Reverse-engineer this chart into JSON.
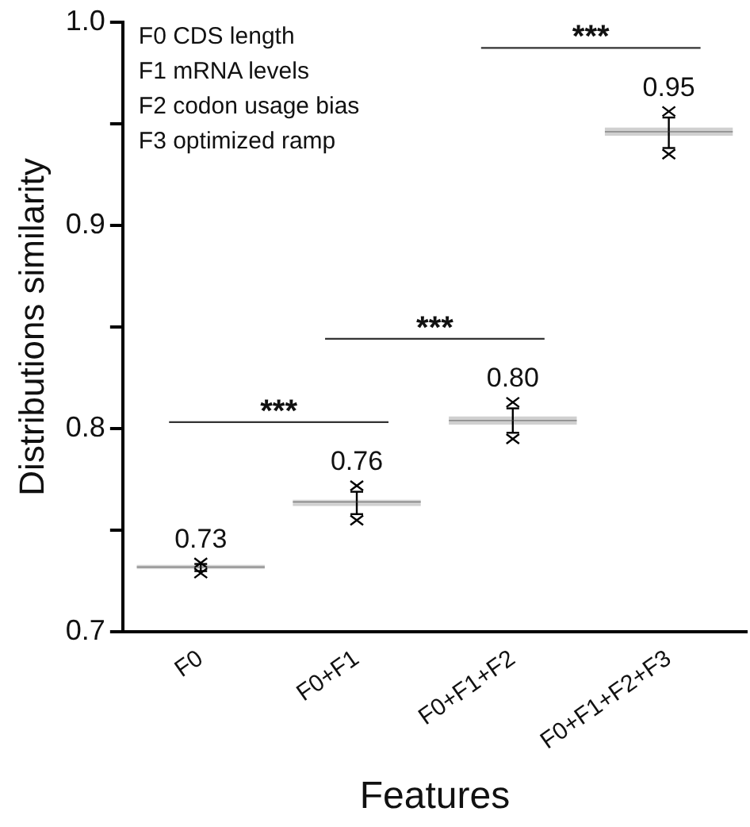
{
  "chart_data": {
    "type": "box",
    "xlabel": "Features",
    "ylabel": "Distributions similarity",
    "categories": [
      "F0",
      "F0+F1",
      "F0+F1+F2",
      "F0+F1+F2+F3"
    ],
    "boxes": [
      {
        "low": 0.73,
        "q1": 0.731,
        "median": 0.732,
        "q3": 0.733,
        "high": 0.7335,
        "outliers": [
          0.729,
          0.734
        ]
      },
      {
        "low": 0.758,
        "q1": 0.762,
        "median": 0.764,
        "q3": 0.765,
        "high": 0.769,
        "outliers": [
          0.755,
          0.772
        ]
      },
      {
        "low": 0.798,
        "q1": 0.802,
        "median": 0.804,
        "q3": 0.806,
        "high": 0.81,
        "outliers": [
          0.795,
          0.813
        ]
      },
      {
        "low": 0.938,
        "q1": 0.944,
        "median": 0.946,
        "q3": 0.948,
        "high": 0.953,
        "outliers": [
          0.935,
          0.956
        ]
      }
    ],
    "value_labels": [
      "0.73",
      "0.76",
      "0.80",
      "0.95"
    ],
    "color": "#d0d0d0",
    "ylim": [
      0.7,
      1.0
    ],
    "yticks": [
      0.7,
      {
        "value": 0.75,
        "label": null
      },
      0.8,
      {
        "value": 0.85,
        "label": null
      },
      0.9,
      {
        "value": 0.95,
        "label": null
      },
      {
        "value": 1.0,
        "label": "1.0"
      }
    ],
    "annotations": [
      "F0 CDS length",
      "F1 mRNA levels",
      "F2 codon usage bias",
      "F3 optimized ramp",
      "***",
      "***",
      "***"
    ],
    "grid": false,
    "legend": false
  }
}
